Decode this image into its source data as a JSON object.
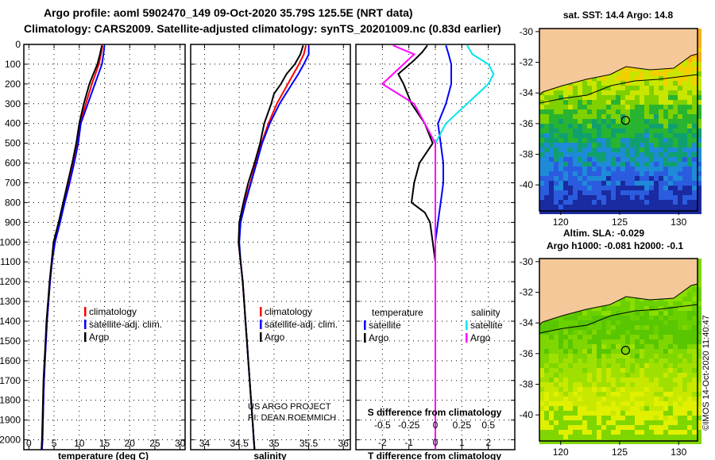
{
  "header": {
    "line1": "Argo profile: aoml 5902470_149 09-Oct-2020 35.79S 125.5E (NRT data)",
    "line2": "Climatology: CARS2009. Satellite-adjusted climatology: synTS_20201009.nc (0.83d earlier)"
  },
  "colors": {
    "climatology": "#ff0000",
    "satellite": "#0000ff",
    "argo": "#000000",
    "sal_satellite": "#00e5ee",
    "sal_argo": "#ff00ff",
    "land": "#f5c89a"
  },
  "chart_data": [
    {
      "type": "line",
      "id": "temperature-profile",
      "xlabel": "temperature (deg C)",
      "ylabel": "",
      "xlim": [
        -1,
        31
      ],
      "ylim": [
        2050,
        0
      ],
      "xticks": [
        "0",
        "5",
        "10",
        "15",
        "20",
        "25",
        "30"
      ],
      "yticks": [
        "0",
        "100",
        "200",
        "300",
        "400",
        "500",
        "600",
        "700",
        "800",
        "900",
        "1000",
        "1100",
        "1200",
        "1300",
        "1400",
        "1500",
        "1600",
        "1700",
        "1800",
        "1900",
        "2000"
      ],
      "legend": [
        "climatology",
        "satellite-adj. clim.",
        "Argo"
      ],
      "series": [
        {
          "name": "climatology",
          "depth": [
            5,
            50,
            100,
            150,
            200,
            300,
            400,
            500,
            600,
            700,
            800,
            900,
            1000,
            1100,
            1200,
            1300,
            1400,
            1500,
            1600,
            1700,
            1800,
            1900,
            2000,
            2050
          ],
          "values": [
            14.6,
            14.3,
            13.9,
            13.2,
            12.5,
            11.3,
            10.2,
            9.6,
            8.7,
            7.8,
            6.9,
            6.0,
            5.1,
            4.6,
            4.2,
            3.9,
            3.6,
            3.4,
            3.2,
            3.0,
            2.9,
            2.8,
            2.7,
            2.6
          ]
        },
        {
          "name": "satellite-adj. clim.",
          "depth": [
            5,
            50,
            100,
            150,
            200,
            300,
            400,
            500,
            600,
            700,
            800,
            900,
            1000,
            1100,
            1200,
            1300,
            1400,
            1500,
            1600,
            1700,
            1800,
            1900,
            2000,
            2050
          ],
          "values": [
            15.0,
            14.8,
            14.5,
            13.8,
            13.1,
            11.7,
            10.3,
            9.8,
            9.0,
            8.1,
            7.1,
            6.2,
            5.2,
            4.6,
            4.2,
            3.9,
            3.6,
            3.4,
            3.2,
            3.0,
            2.9,
            2.8,
            2.7,
            2.6
          ]
        },
        {
          "name": "Argo",
          "depth": [
            5,
            50,
            100,
            150,
            200,
            300,
            400,
            500,
            600,
            700,
            800,
            900,
            1000,
            1100,
            1200,
            1300,
            1400,
            1500,
            1600,
            1700,
            1800,
            1900,
            2000,
            2050
          ],
          "values": [
            14.5,
            14.1,
            13.6,
            12.8,
            12.0,
            10.9,
            10.0,
            9.4,
            8.6,
            7.7,
            6.8,
            5.9,
            4.9,
            4.5,
            4.1,
            3.8,
            3.5,
            3.3,
            3.1,
            2.9,
            2.8,
            2.7,
            2.6,
            2.5
          ]
        }
      ]
    },
    {
      "type": "line",
      "id": "salinity-profile",
      "xlabel": "salinity",
      "xlim": [
        33.8,
        36.1
      ],
      "ylim": [
        2050,
        0
      ],
      "xticks": [
        "34",
        "34.5",
        "35",
        "35.5",
        "36"
      ],
      "legend": [
        "climatology",
        "satellite-adj. clim.",
        "Argo"
      ],
      "annotations": [
        "US ARGO PROJECT",
        "PI: DEAN ROEMMICH"
      ],
      "series": [
        {
          "name": "climatology",
          "depth": [
            5,
            50,
            100,
            150,
            200,
            250,
            300,
            400,
            500,
            600,
            700,
            800,
            900,
            1000,
            1100,
            1200,
            1300,
            1400,
            1500,
            1600,
            1700,
            1800,
            1900,
            2000,
            2050
          ],
          "values": [
            35.46,
            35.43,
            35.36,
            35.28,
            35.2,
            35.12,
            35.04,
            34.92,
            34.82,
            34.74,
            34.66,
            34.58,
            34.51,
            34.49,
            34.52,
            34.55,
            34.57,
            34.59,
            34.61,
            34.63,
            34.65,
            34.67,
            34.69,
            34.71,
            34.72
          ]
        },
        {
          "name": "satellite-adj. clim.",
          "depth": [
            5,
            50,
            100,
            150,
            200,
            250,
            300,
            400,
            500,
            600,
            700,
            800,
            900,
            1000,
            1100,
            1200,
            1300,
            1400,
            1500,
            1600,
            1700,
            1800,
            1900,
            2000,
            2050
          ],
          "values": [
            35.5,
            35.5,
            35.43,
            35.35,
            35.26,
            35.17,
            35.08,
            34.94,
            34.83,
            34.75,
            34.67,
            34.59,
            34.52,
            34.5,
            34.52,
            34.55,
            34.57,
            34.59,
            34.61,
            34.63,
            34.65,
            34.67,
            34.69,
            34.71,
            34.72
          ]
        },
        {
          "name": "Argo",
          "depth": [
            5,
            50,
            100,
            150,
            200,
            250,
            300,
            400,
            500,
            600,
            700,
            800,
            900,
            1000,
            1100,
            1200,
            1300,
            1400,
            1500,
            1600,
            1700,
            1800,
            1900,
            2000,
            2050
          ],
          "values": [
            35.42,
            35.38,
            35.3,
            35.18,
            35.1,
            35.0,
            34.96,
            34.86,
            34.8,
            34.72,
            34.63,
            34.56,
            34.5,
            34.49,
            34.52,
            34.55,
            34.57,
            34.59,
            34.61,
            34.63,
            34.65,
            34.67,
            34.69,
            34.71,
            34.72
          ]
        }
      ]
    },
    {
      "type": "line",
      "id": "difference-profile",
      "xlabel": "T difference from climatology",
      "xlabel2": "S difference from climatology",
      "xlim": [
        -3,
        3
      ],
      "ylim": [
        2050,
        0
      ],
      "xticks": [
        "-2",
        "-1",
        "0",
        "1",
        "2"
      ],
      "xticks2": [
        "-0.5",
        "-0.25",
        "0",
        "0.25",
        "0.5"
      ],
      "legend_left_title": "temperature",
      "legend_right_title": "salinity",
      "legend": [
        "satellite",
        "Argo",
        "satellite",
        "Argo"
      ],
      "series": [
        {
          "name": "temperature satellite",
          "depth": [
            5,
            50,
            100,
            150,
            200,
            300,
            400,
            500,
            600,
            700,
            800,
            900,
            1000,
            1200,
            1500,
            2050
          ],
          "values": [
            0.4,
            0.5,
            0.6,
            0.6,
            0.6,
            0.4,
            0.1,
            0.2,
            0.3,
            0.3,
            0.2,
            0.1,
            0.0,
            0.0,
            0.0,
            0.0
          ]
        },
        {
          "name": "temperature Argo",
          "depth": [
            5,
            40,
            80,
            150,
            200,
            300,
            400,
            500,
            600,
            700,
            800,
            850,
            900,
            1000,
            1100,
            1200,
            1300,
            1500,
            2050
          ],
          "values": [
            -0.3,
            -0.5,
            -0.8,
            -1.4,
            -1.2,
            -0.9,
            -0.4,
            -0.1,
            -0.6,
            -0.8,
            -0.9,
            -0.4,
            -0.2,
            -0.1,
            0.0,
            0.0,
            0.0,
            0.0,
            0.0
          ]
        },
        {
          "name": "salinity satellite",
          "depth": [
            5,
            50,
            100,
            150,
            200,
            300,
            400,
            500,
            600,
            800,
            1000,
            1300,
            1500,
            2050
          ],
          "values": [
            0.3,
            0.35,
            0.5,
            0.55,
            0.5,
            0.3,
            0.1,
            0.0,
            0.0,
            0.0,
            0.0,
            0.0,
            0.0,
            0.0
          ]
        },
        {
          "name": "salinity Argo",
          "depth": [
            5,
            50,
            100,
            150,
            200,
            300,
            400,
            500,
            600,
            800,
            1000,
            1300,
            1500,
            2050
          ],
          "values": [
            -0.4,
            -0.2,
            -0.3,
            -0.4,
            -0.5,
            -0.2,
            -0.1,
            0.0,
            0.0,
            0.0,
            0.0,
            0.0,
            0.0,
            0.0
          ]
        }
      ]
    },
    {
      "type": "heatmap",
      "id": "sst-map",
      "title": "sat. SST: 14.4 Argo: 14.8",
      "xlim": [
        118.2,
        131.6
      ],
      "ylim": [
        -41.7,
        -29.8
      ],
      "xticks": [
        "120",
        "125",
        "130"
      ],
      "yticks": [
        "-30",
        "-32",
        "-34",
        "-36",
        "-38",
        "-40"
      ],
      "float_position": {
        "lon": 125.5,
        "lat": -35.79
      }
    },
    {
      "type": "heatmap",
      "id": "sla-map",
      "title": "Altim. SLA: -0.029",
      "subtitle": "Argo h1000: -0.081 h2000: -0.1",
      "xlim": [
        118.2,
        131.6
      ],
      "ylim": [
        -41.7,
        -29.8
      ],
      "xticks": [
        "120",
        "125",
        "130"
      ],
      "yticks": [
        "-30",
        "-32",
        "-34",
        "-36",
        "-38",
        "-40"
      ],
      "float_position": {
        "lon": 125.5,
        "lat": -35.79
      },
      "credit": "©IMOS 14-Oct-2020 11:40:47"
    }
  ]
}
